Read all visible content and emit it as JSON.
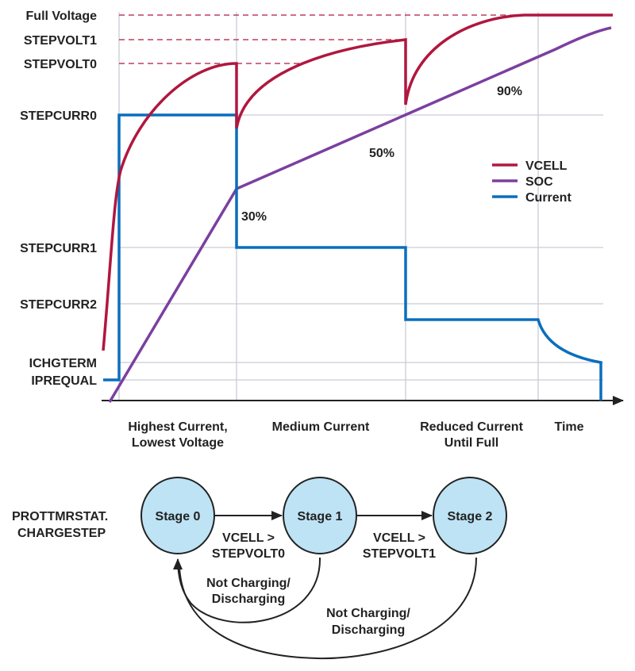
{
  "colors": {
    "vcell": "#b0173f",
    "soc": "#7b3fa0",
    "current": "#0a6ebd",
    "stage_fill": "#bde3f5"
  },
  "y_labels": {
    "full_voltage": "Full Voltage",
    "stepvolt1": "STEPVOLT1",
    "stepvolt0": "STEPVOLT0",
    "stepcurr0": "STEPCURR0",
    "stepcurr1": "STEPCURR1",
    "stepcurr2": "STEPCURR2",
    "ichgterm": "ICHGTERM",
    "iprequal": "IPREQUAL"
  },
  "soc_markers": {
    "p30": "30%",
    "p50": "50%",
    "p90": "90%"
  },
  "legend": {
    "vcell": "VCELL",
    "soc": "SOC",
    "current": "Current"
  },
  "x_labels": {
    "phase1_line1": "Highest Current,",
    "phase1_line2": "Lowest Voltage",
    "phase2": "Medium Current",
    "phase3_line1": "Reduced Current",
    "phase3_line2": "Until Full",
    "time": "Time"
  },
  "state_machine": {
    "register_line1": "PROTTMRSTAT.",
    "register_line2": "CHARGESTEP",
    "stages": [
      "Stage 0",
      "Stage 1",
      "Stage 2"
    ],
    "transition_0_1": [
      "VCELL >",
      "STEPVOLT0"
    ],
    "transition_1_2": [
      "VCELL >",
      "STEPVOLT1"
    ],
    "return_1_0": [
      "Not Charging/",
      "Discharging"
    ],
    "return_2_0": [
      "Not Charging/",
      "Discharging"
    ]
  }
}
